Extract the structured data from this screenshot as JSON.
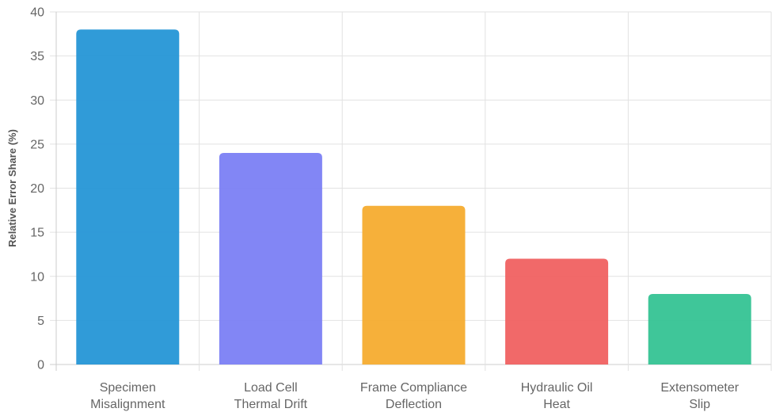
{
  "chart_data": {
    "type": "bar",
    "title": "",
    "xlabel": "",
    "ylabel": "Relative Error Share (%)",
    "ylim": [
      0,
      40
    ],
    "ytick_step": 5,
    "grid": true,
    "legend": "none",
    "categories": [
      [
        "Specimen",
        "Misalignment"
      ],
      [
        "Load Cell",
        "Thermal Drift"
      ],
      [
        "Frame Compliance",
        "Deflection"
      ],
      [
        "Hydraulic Oil",
        "Heat"
      ],
      [
        "Extensometer",
        "Slip"
      ]
    ],
    "values": [
      38,
      24,
      18,
      12,
      8
    ],
    "colors": [
      "#2596d6",
      "#7b7ff4",
      "#f5ac2f",
      "#f06161",
      "#35c394"
    ]
  }
}
